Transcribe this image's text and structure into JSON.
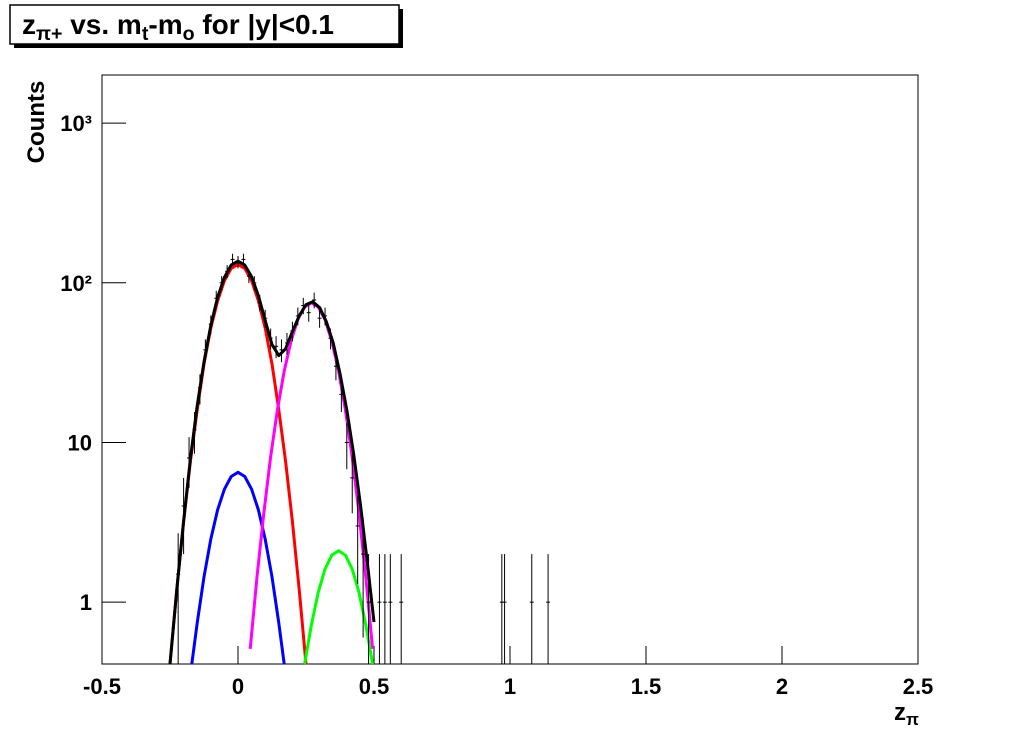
{
  "chart_data": {
    "type": "errorbar",
    "title_parts": [
      {
        "text": "z"
      },
      {
        "text": "π+",
        "sub": true
      },
      {
        "text": " vs. m"
      },
      {
        "text": "t",
        "sub": true
      },
      {
        "text": "-m"
      },
      {
        "text": "o",
        "sub": true
      },
      {
        "text": " for |y|<0.1"
      }
    ],
    "ylabel": "Counts",
    "xlabel_parts": [
      {
        "text": "z"
      },
      {
        "text": "π",
        "sub": true
      }
    ],
    "xlim": [
      -0.5,
      2.5
    ],
    "xticks": [
      -0.5,
      0,
      0.5,
      1,
      1.5,
      2,
      2.5
    ],
    "ylim": [
      0.41,
      2000
    ],
    "log_y": true,
    "yticks": [
      1,
      10,
      {
        "value": 100,
        "label": "10²"
      },
      {
        "value": 1000,
        "label": "10³"
      }
    ],
    "points": {
      "color": "#000000",
      "x": [
        -0.22,
        -0.2,
        -0.18,
        -0.16,
        -0.14,
        -0.12,
        -0.1,
        -0.08,
        -0.06,
        -0.04,
        -0.02,
        0,
        0.02,
        0.04,
        0.06,
        0.08,
        0.1,
        0.12,
        0.14,
        0.16,
        0.18,
        0.2,
        0.22,
        0.24,
        0.26,
        0.28,
        0.3,
        0.32,
        0.34,
        0.36,
        0.38,
        0.4,
        0.42,
        0.44,
        0.46,
        0.48,
        0.52,
        0.54,
        0.56,
        0.6,
        0.97,
        0.98,
        1.08,
        1.14
      ],
      "values": [
        1.5,
        4,
        8,
        12,
        22,
        38,
        55,
        80,
        100,
        118,
        140,
        135,
        140,
        110,
        100,
        75,
        60,
        45,
        40,
        38,
        42,
        50,
        62,
        72,
        65,
        78,
        60,
        62,
        45,
        30,
        20,
        10,
        6,
        3,
        2,
        1,
        1,
        1,
        1,
        1,
        1,
        1,
        1,
        1
      ],
      "errors": [
        1.2,
        2,
        2.8,
        3.5,
        4.7,
        6.2,
        7.4,
        9,
        10,
        11,
        12,
        12,
        12,
        10.5,
        10,
        8.7,
        7.7,
        6.7,
        6.3,
        6.2,
        6.5,
        7,
        7.9,
        8.5,
        8,
        8.8,
        7.7,
        7.9,
        6.7,
        5.5,
        4.5,
        3.2,
        2.4,
        1.7,
        1.4,
        1,
        1,
        1,
        1,
        1,
        1,
        1,
        1,
        1
      ]
    },
    "series": [
      {
        "color": "#ff0000",
        "x": [
          -0.25,
          -0.225,
          -0.2,
          -0.175,
          -0.15,
          -0.125,
          -0.1,
          -0.075,
          -0.05,
          -0.025,
          0,
          0.025,
          0.05,
          0.075,
          0.1,
          0.125,
          0.15,
          0.175,
          0.2,
          0.225,
          0.25
        ],
        "values": [
          0.4,
          1.2,
          3.2,
          7.6,
          16,
          31,
          52,
          77,
          103,
          123,
          130,
          123,
          103,
          77,
          52,
          31,
          16,
          7.6,
          3.2,
          1.2,
          0.4
        ]
      },
      {
        "color": "#0000ff",
        "x": [
          -0.17,
          -0.15,
          -0.125,
          -0.1,
          -0.075,
          -0.05,
          -0.025,
          0,
          0.025,
          0.05,
          0.075,
          0.1,
          0.125,
          0.15,
          0.17
        ],
        "values": [
          0.4,
          0.74,
          1.44,
          2.48,
          3.78,
          5.1,
          6.12,
          6.5,
          6.12,
          5.1,
          3.78,
          2.48,
          1.44,
          0.74,
          0.4
        ]
      },
      {
        "color": "#ff00ff",
        "x": [
          0.045,
          0.07,
          0.095,
          0.12,
          0.145,
          0.17,
          0.195,
          0.22,
          0.245,
          0.27,
          0.295,
          0.32,
          0.345,
          0.37,
          0.395,
          0.42,
          0.445,
          0.47,
          0.495
        ],
        "values": [
          0.51,
          1.44,
          3.6,
          8.1,
          16,
          28,
          43,
          59,
          70.5,
          75,
          70.5,
          59,
          43,
          28,
          16,
          8.1,
          3.6,
          1.44,
          0.51
        ]
      },
      {
        "color": "#00ff00",
        "x": [
          0.245,
          0.27,
          0.295,
          0.32,
          0.345,
          0.37,
          0.395,
          0.42,
          0.445,
          0.47,
          0.495
        ],
        "values": [
          0.4,
          0.72,
          1.15,
          1.61,
          1.97,
          2.1,
          1.97,
          1.61,
          1.15,
          0.72,
          0.4
        ]
      },
      {
        "color": "#000000",
        "x": [
          -0.25,
          -0.225,
          -0.2,
          -0.175,
          -0.15,
          -0.125,
          -0.1,
          -0.075,
          -0.05,
          -0.025,
          0,
          0.025,
          0.05,
          0.075,
          0.1,
          0.125,
          0.15,
          0.175,
          0.2,
          0.225,
          0.25,
          0.275,
          0.3,
          0.325,
          0.35,
          0.375,
          0.4,
          0.425,
          0.45,
          0.475,
          0.5
        ],
        "values": [
          0.4,
          1.2,
          3.2,
          7.9,
          17,
          32,
          54,
          81,
          108,
          129,
          136.5,
          129,
          109,
          83,
          58,
          41,
          35,
          38.6,
          49.4,
          62,
          73,
          76,
          70,
          57,
          42,
          27,
          16,
          8.5,
          4.1,
          1.8,
          0.75
        ]
      }
    ]
  }
}
